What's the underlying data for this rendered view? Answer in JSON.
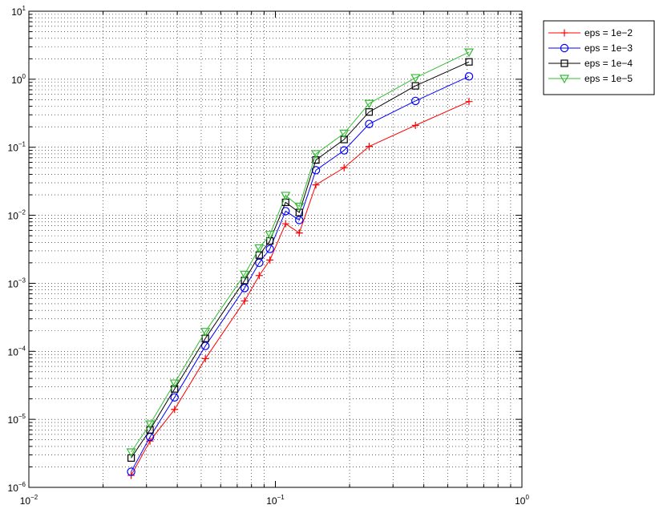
{
  "chart_data": {
    "type": "line",
    "x_scale": "log",
    "y_scale": "log",
    "xlim": [
      0.01,
      1
    ],
    "ylim": [
      1e-06,
      10
    ],
    "x_ticks": [
      {
        "value": 0.01,
        "base": "10",
        "exp": "−2"
      },
      {
        "value": 0.1,
        "base": "10",
        "exp": "−1"
      },
      {
        "value": 1,
        "base": "10",
        "exp": "0"
      }
    ],
    "y_ticks": [
      {
        "value": 1e-06,
        "base": "10",
        "exp": "−6"
      },
      {
        "value": 1e-05,
        "base": "10",
        "exp": "−5"
      },
      {
        "value": 0.0001,
        "base": "10",
        "exp": "−4"
      },
      {
        "value": 0.001,
        "base": "10",
        "exp": "−3"
      },
      {
        "value": 0.01,
        "base": "10",
        "exp": "−2"
      },
      {
        "value": 0.1,
        "base": "10",
        "exp": "−1"
      },
      {
        "value": 1,
        "base": "10",
        "exp": "0"
      },
      {
        "value": 10,
        "base": "10",
        "exp": "1"
      }
    ],
    "grid": true,
    "legend_position": "outside-top-right",
    "x": [
      0.026,
      0.031,
      0.039,
      0.052,
      0.075,
      0.086,
      0.095,
      0.11,
      0.125,
      0.146,
      0.19,
      0.24,
      0.37,
      0.61
    ],
    "series": [
      {
        "name": "eps = 1e−2",
        "color": "#ff0000",
        "marker": "plus",
        "values": [
          1.5e-06,
          4.8e-06,
          1.4e-05,
          7.8e-05,
          0.00055,
          0.0013,
          0.0022,
          0.0075,
          0.0055,
          0.028,
          0.05,
          0.103,
          0.21,
          0.47
        ]
      },
      {
        "name": "eps = 1e−3",
        "color": "#0000ff",
        "marker": "circle",
        "values": [
          1.7e-06,
          5.5e-06,
          2.1e-05,
          0.00012,
          0.00085,
          0.002,
          0.0032,
          0.0115,
          0.0085,
          0.046,
          0.09,
          0.22,
          0.48,
          1.1
        ]
      },
      {
        "name": "eps = 1e−4",
        "color": "#000000",
        "marker": "square",
        "values": [
          2.7e-06,
          7e-06,
          2.8e-05,
          0.000155,
          0.0011,
          0.0026,
          0.0042,
          0.0155,
          0.011,
          0.065,
          0.13,
          0.33,
          0.8,
          1.8
        ]
      },
      {
        "name": "eps = 1e−5",
        "color": "#33bb33",
        "marker": "triangle-down",
        "values": [
          3.3e-06,
          8.5e-06,
          3.4e-05,
          0.000195,
          0.00135,
          0.0033,
          0.0052,
          0.0195,
          0.0135,
          0.08,
          0.16,
          0.44,
          1.05,
          2.5
        ]
      }
    ]
  }
}
